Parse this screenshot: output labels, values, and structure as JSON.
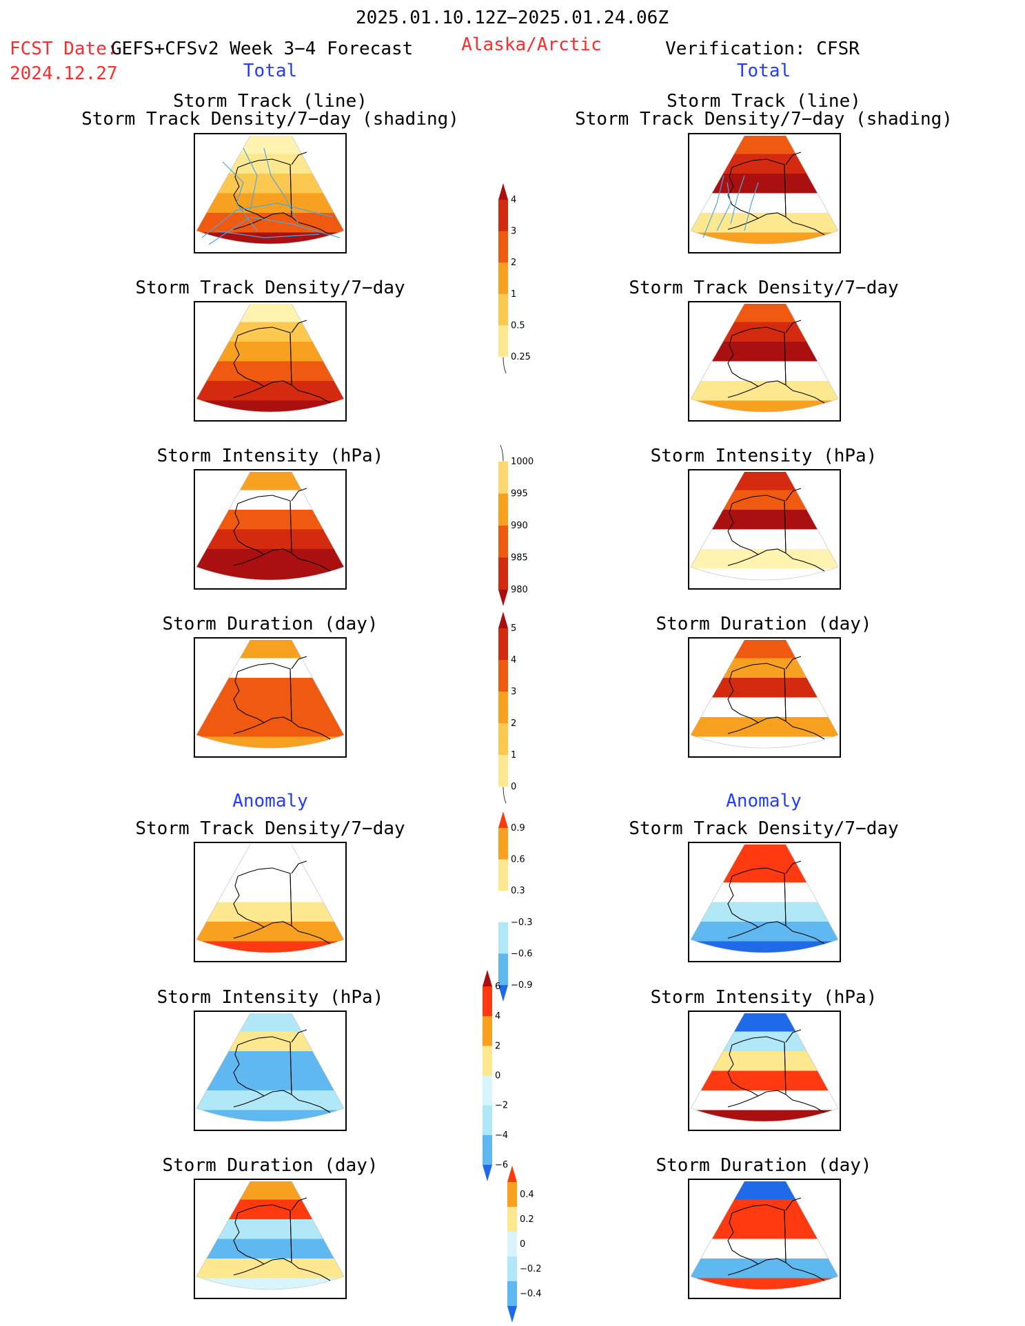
{
  "header": {
    "period": "2025.01.10.12Z−2025.01.24.06Z",
    "fcst_label": "FCST Date:",
    "fcst_model": "GEFS+CFSv2 Week 3−4 Forecast",
    "fcst_date": "2024.12.27",
    "region": "Alaska/Arctic",
    "verification": "Verification: CFSR"
  },
  "columns": {
    "left_total": "Total",
    "right_total": "Total",
    "left_anomaly": "Anomaly",
    "right_anomaly": "Anomaly"
  },
  "titles": {
    "track_line": "Storm Track (line)",
    "track_shading": "Storm Track Density/7−day (shading)",
    "density": "Storm Track Density/7−day",
    "intensity": "Storm Intensity (hPa)",
    "duration": "Storm Duration (day)"
  },
  "chart_data": [
    {
      "type": "heatmap",
      "panel": "forecast-total-storm-track",
      "title": "Storm Track (line) / Storm Track Density/7−day (shading)",
      "colorbar": "density"
    },
    {
      "type": "heatmap",
      "panel": "verification-total-storm-track",
      "title": "Storm Track (line) / Storm Track Density/7−day (shading)",
      "colorbar": "density"
    },
    {
      "type": "heatmap",
      "panel": "forecast-total-density",
      "title": "Storm Track Density/7−day",
      "colorbar": "density"
    },
    {
      "type": "heatmap",
      "panel": "verification-total-density",
      "title": "Storm Track Density/7−day",
      "colorbar": "density"
    },
    {
      "type": "heatmap",
      "panel": "forecast-total-intensity",
      "title": "Storm Intensity (hPa)",
      "colorbar": "intensity"
    },
    {
      "type": "heatmap",
      "panel": "verification-total-intensity",
      "title": "Storm Intensity (hPa)",
      "colorbar": "intensity"
    },
    {
      "type": "heatmap",
      "panel": "forecast-total-duration",
      "title": "Storm Duration (day)",
      "colorbar": "duration"
    },
    {
      "type": "heatmap",
      "panel": "verification-total-duration",
      "title": "Storm Duration (day)",
      "colorbar": "duration"
    },
    {
      "type": "heatmap",
      "panel": "forecast-anomaly-density",
      "title": "Storm Track Density/7−day",
      "colorbar": "density_anom"
    },
    {
      "type": "heatmap",
      "panel": "verification-anomaly-density",
      "title": "Storm Track Density/7−day",
      "colorbar": "density_anom"
    },
    {
      "type": "heatmap",
      "panel": "forecast-anomaly-intensity",
      "title": "Storm Intensity (hPa)",
      "colorbar": "intensity_anom"
    },
    {
      "type": "heatmap",
      "panel": "verification-anomaly-intensity",
      "title": "Storm Intensity (hPa)",
      "colorbar": "intensity_anom"
    },
    {
      "type": "heatmap",
      "panel": "forecast-anomaly-duration",
      "title": "Storm Duration (day)",
      "colorbar": "duration_anom"
    },
    {
      "type": "heatmap",
      "panel": "verification-anomaly-duration",
      "title": "Storm Duration (day)",
      "colorbar": "duration_anom"
    }
  ],
  "colorbars": {
    "density": {
      "ticks": [
        "4",
        "3",
        "2",
        "1",
        "0.5",
        "0.25"
      ],
      "colors": [
        "#aa1010",
        "#d42a10",
        "#f05a10",
        "#f8a020",
        "#fcc850",
        "#fde890",
        "#fff8c0"
      ],
      "top_arrow": true,
      "bottom_open": true
    },
    "intensity": {
      "ticks": [
        "1000",
        "995",
        "990",
        "985",
        "980"
      ],
      "colors": [
        "#fff8c0",
        "#fdd870",
        "#f8a020",
        "#f05a10",
        "#d42a10",
        "#aa1010"
      ],
      "top_open": true,
      "bottom_arrow": true
    },
    "duration": {
      "ticks": [
        "5",
        "4",
        "3",
        "2",
        "1",
        "0"
      ],
      "colors": [
        "#aa1010",
        "#d42a10",
        "#f05a10",
        "#f8a020",
        "#fcc850",
        "#fde890",
        "#fff8c0"
      ],
      "top_arrow": true,
      "bottom_open": true
    },
    "density_anom": {
      "ticks": [
        "0.9",
        "0.6",
        "0.3",
        "−0.3",
        "−0.6",
        "−0.9"
      ],
      "colors": [
        "#ff3a10",
        "#f8a020",
        "#fde890",
        "#ffffff",
        "#b0e8f8",
        "#60b8f0",
        "#1e6ae8"
      ],
      "top_arrow": true,
      "bottom_arrow": true
    },
    "intensity_anom": {
      "ticks": [
        "6",
        "4",
        "2",
        "0",
        "−2",
        "−4",
        "−6"
      ],
      "colors": [
        "#aa1010",
        "#ff3a10",
        "#f8a020",
        "#fde890",
        "#d8f4fc",
        "#b0e8f8",
        "#60b8f0",
        "#1e6ae8"
      ],
      "top_arrow": true,
      "bottom_arrow": true
    },
    "duration_anom": {
      "ticks": [
        "0.4",
        "0.2",
        "0",
        "−0.2",
        "−0.4"
      ],
      "colors": [
        "#ff3a10",
        "#f8a020",
        "#fde890",
        "#d8f4fc",
        "#b0e8f8",
        "#60b8f0",
        "#1e6ae8"
      ],
      "top_arrow": true,
      "bottom_arrow": true
    }
  },
  "colors": {
    "red_text": "#ff2a2a",
    "blue_text": "#1f3cff",
    "track_line": "#4aa8e0"
  }
}
